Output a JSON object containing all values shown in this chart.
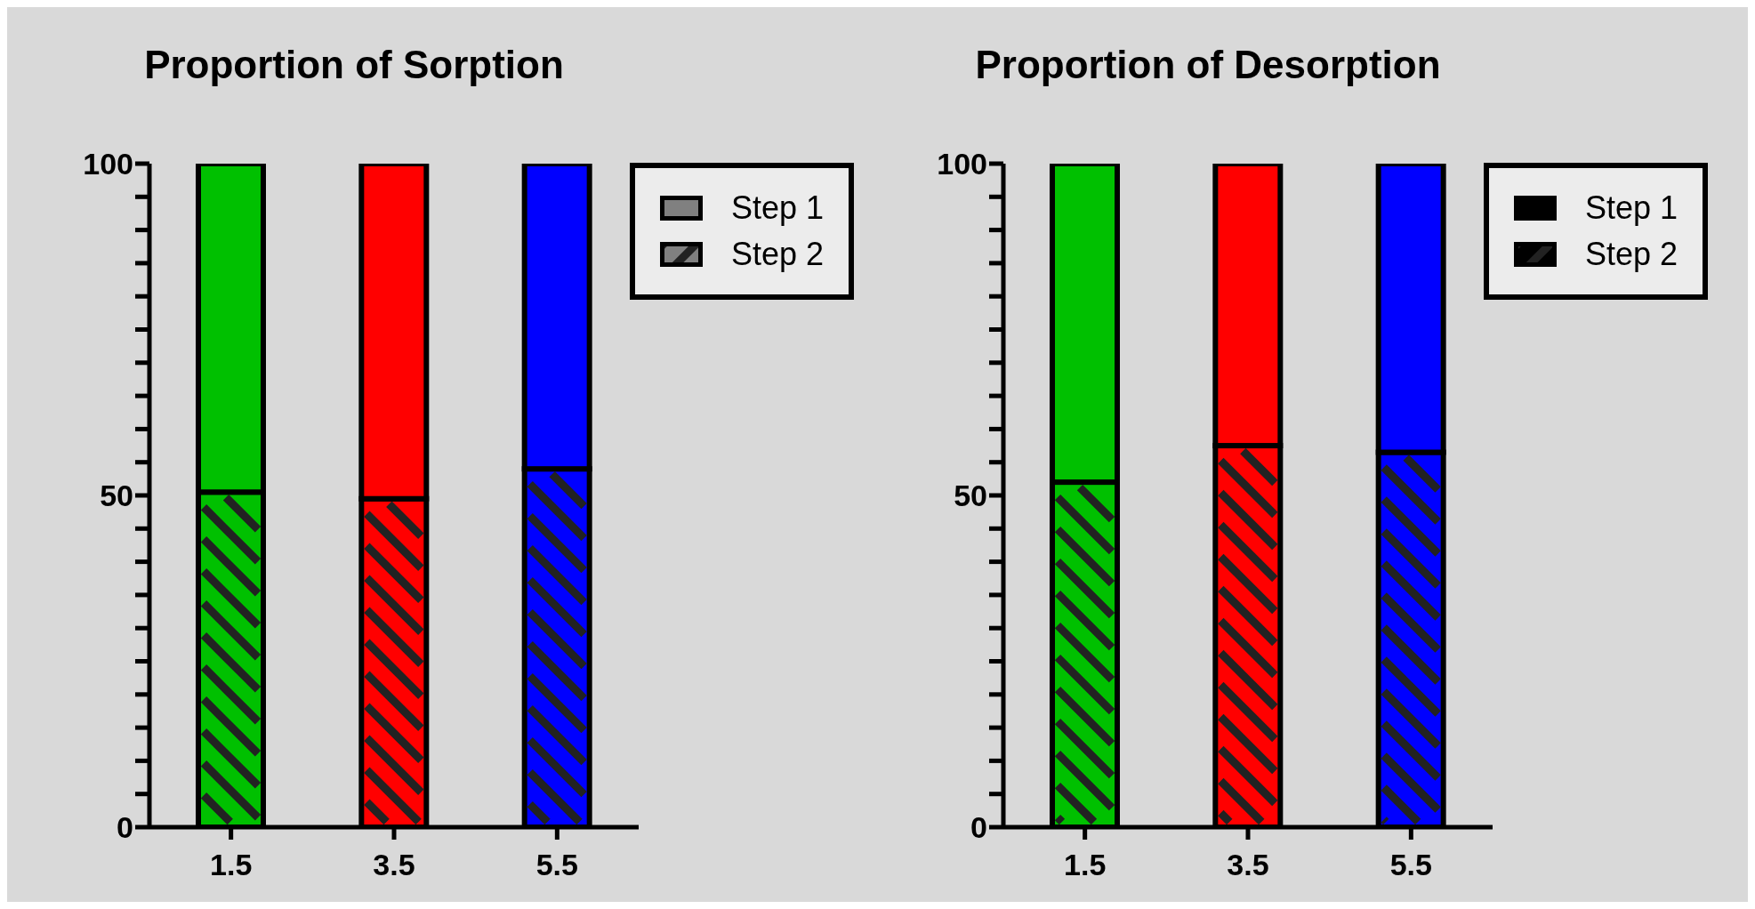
{
  "chart_data": [
    {
      "type": "bar",
      "title": "Proportion of Sorption",
      "categories": [
        "1.5",
        "3.5",
        "5.5"
      ],
      "stacked": true,
      "ylim": [
        0,
        100
      ],
      "yticks": [
        0,
        {
          "value": 5,
          "label": null
        },
        {
          "value": 10,
          "label": null
        },
        {
          "value": 15,
          "label": null
        },
        {
          "value": 20,
          "label": null
        },
        {
          "value": 25,
          "label": null
        },
        {
          "value": 30,
          "label": null
        },
        {
          "value": 35,
          "label": null
        },
        {
          "value": 40,
          "label": null
        },
        {
          "value": 45,
          "label": null
        },
        50,
        {
          "value": 55,
          "label": null
        },
        {
          "value": 60,
          "label": null
        },
        {
          "value": 65,
          "label": null
        },
        {
          "value": 70,
          "label": null
        },
        {
          "value": 75,
          "label": null
        },
        {
          "value": 80,
          "label": null
        },
        {
          "value": 85,
          "label": null
        },
        {
          "value": 90,
          "label": null
        },
        {
          "value": 95,
          "label": null
        },
        100
      ],
      "legend": "top right",
      "series": [
        {
          "name": "Step 2",
          "color": "#808080",
          "colors": [
            "#00c000",
            "#ff0000",
            "#0000ff"
          ],
          "values": [
            50.5,
            49.5,
            54
          ]
        },
        {
          "name": "Step 1",
          "color": "#808080",
          "colors": [
            "#00c000",
            "#ff0000",
            "#0000ff"
          ],
          "values": [
            49.5,
            50.5,
            46
          ]
        }
      ]
    },
    {
      "type": "bar",
      "title": "Proportion of Desorption",
      "categories": [
        "1.5",
        "3.5",
        "5.5"
      ],
      "stacked": true,
      "ylim": [
        0,
        100
      ],
      "yticks": [
        0,
        {
          "value": 5,
          "label": null
        },
        {
          "value": 10,
          "label": null
        },
        {
          "value": 15,
          "label": null
        },
        {
          "value": 20,
          "label": null
        },
        {
          "value": 25,
          "label": null
        },
        {
          "value": 30,
          "label": null
        },
        {
          "value": 35,
          "label": null
        },
        {
          "value": 40,
          "label": null
        },
        {
          "value": 45,
          "label": null
        },
        50,
        {
          "value": 55,
          "label": null
        },
        {
          "value": 60,
          "label": null
        },
        {
          "value": 65,
          "label": null
        },
        {
          "value": 70,
          "label": null
        },
        {
          "value": 75,
          "label": null
        },
        {
          "value": 80,
          "label": null
        },
        {
          "value": 85,
          "label": null
        },
        {
          "value": 90,
          "label": null
        },
        {
          "value": 95,
          "label": null
        },
        100
      ],
      "legend": "top right",
      "series": [
        {
          "name": "Step 2",
          "color": "#000000",
          "colors": [
            "#00c000",
            "#ff0000",
            "#0000ff"
          ],
          "values": [
            52,
            57.5,
            56.5
          ]
        },
        {
          "name": "Step 1",
          "color": "#000000",
          "colors": [
            "#00c000",
            "#ff0000",
            "#0000ff"
          ],
          "values": [
            48,
            42.5,
            43.5
          ]
        }
      ]
    }
  ]
}
